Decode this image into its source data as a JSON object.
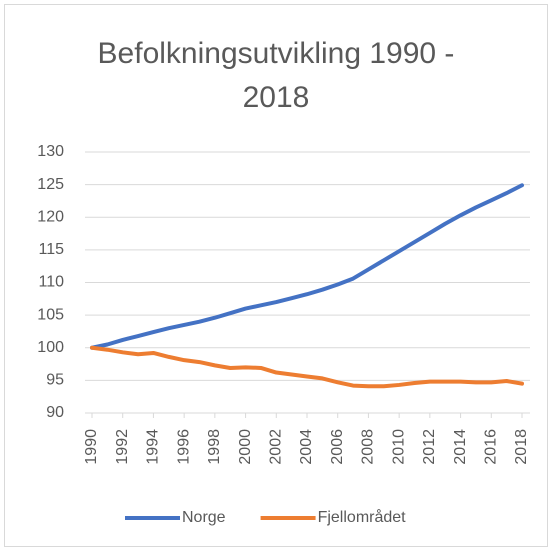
{
  "chart_data": {
    "type": "line",
    "title": "Befolkningsutvikling 1990 - 2018",
    "x": [
      1990,
      1991,
      1992,
      1993,
      1994,
      1995,
      1996,
      1997,
      1998,
      1999,
      2000,
      2001,
      2002,
      2003,
      2004,
      2005,
      2006,
      2007,
      2008,
      2009,
      2010,
      2011,
      2012,
      2013,
      2014,
      2015,
      2016,
      2017,
      2018
    ],
    "series": [
      {
        "name": "Norge",
        "color": "#4472c4",
        "values": [
          100,
          100.5,
          101.2,
          101.8,
          102.4,
          103,
          103.5,
          104,
          104.6,
          105.3,
          106,
          106.5,
          107,
          107.6,
          108.2,
          108.9,
          109.7,
          110.6,
          112,
          113.4,
          114.8,
          116.2,
          117.6,
          119,
          120.3,
          121.5,
          122.6,
          123.7,
          124.9
        ]
      },
      {
        "name": "Fjellområdet",
        "color": "#ed7d31",
        "values": [
          100,
          99.7,
          99.3,
          99.0,
          99.2,
          98.6,
          98.1,
          97.8,
          97.3,
          96.9,
          97.0,
          96.9,
          96.2,
          95.9,
          95.6,
          95.3,
          94.7,
          94.2,
          94.1,
          94.1,
          94.3,
          94.6,
          94.8,
          94.8,
          94.8,
          94.7,
          94.7,
          94.9,
          94.5
        ]
      }
    ],
    "xlim": [
      1990,
      2018
    ],
    "xticks": [
      1990,
      1992,
      1994,
      1996,
      1998,
      2000,
      2002,
      2004,
      2006,
      2008,
      2010,
      2012,
      2014,
      2016,
      2018
    ],
    "ylim": [
      90,
      130
    ],
    "yticks": [
      90,
      95,
      100,
      105,
      110,
      115,
      120,
      125,
      130
    ],
    "grid": true,
    "legend": "bottom"
  }
}
